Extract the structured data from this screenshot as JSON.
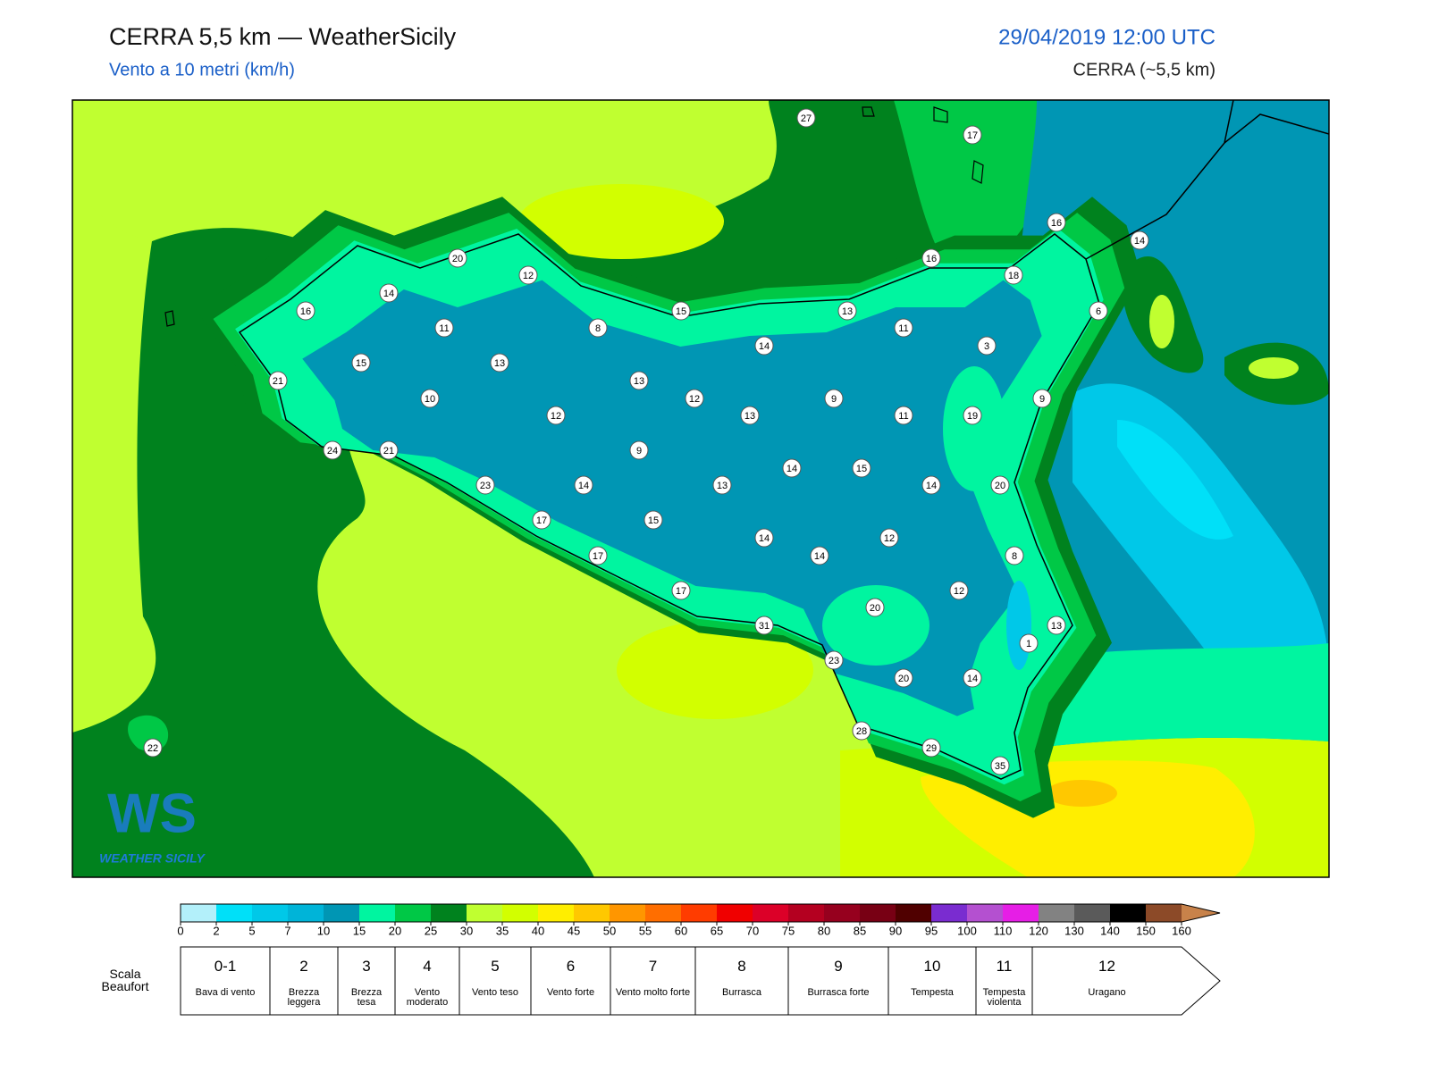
{
  "header": {
    "title": "CERRA 5,5 km — WeatherSicily",
    "subtitle": "Vento a 10 metri (km/h)",
    "datetime": "29/04/2019 12:00 UTC",
    "model": "CERRA (~5,5 km)"
  },
  "map": {
    "station_values": [
      27,
      17,
      16,
      14,
      20,
      12,
      16,
      18,
      14,
      16,
      15,
      13,
      6,
      11,
      8,
      11,
      3,
      14,
      15,
      13,
      21,
      13,
      10,
      12,
      9,
      9,
      12,
      13,
      11,
      19,
      24,
      21,
      9,
      14,
      15,
      23,
      14,
      13,
      14,
      20,
      17,
      15,
      14,
      12,
      14,
      17,
      8,
      17,
      12,
      20,
      31,
      13,
      1,
      23,
      20,
      14,
      28,
      29,
      35,
      22
    ],
    "logo": {
      "initials": "WS",
      "name": "WEATHER SICILY"
    }
  },
  "colorbar": {
    "ticks": [
      0,
      2,
      5,
      7,
      10,
      15,
      20,
      25,
      30,
      35,
      40,
      45,
      50,
      55,
      60,
      65,
      70,
      75,
      80,
      85,
      90,
      95,
      100,
      110,
      120,
      130,
      140,
      150,
      160
    ],
    "colors": [
      "#b3f0fa",
      "#00e0f8",
      "#00c8e8",
      "#00b4d8",
      "#0096b4",
      "#00f5a0",
      "#00c846",
      "#00821e",
      "#c0ff30",
      "#d2ff00",
      "#ffee00",
      "#ffc800",
      "#ff9600",
      "#ff6e00",
      "#ff3c00",
      "#f00000",
      "#dc0028",
      "#b40020",
      "#96001e",
      "#780014",
      "#500000",
      "#7a2cd0",
      "#b450d0",
      "#e61ee6",
      "#828282",
      "#5a5a5a",
      "#000000",
      "#8c4a28",
      "#c8824a"
    ]
  },
  "beaufort": {
    "label": "Scala Beaufort",
    "levels": [
      {
        "number": "0-1",
        "description": "Bava di vento"
      },
      {
        "number": "2",
        "description": "Brezza leggera"
      },
      {
        "number": "3",
        "description": "Brezza tesa"
      },
      {
        "number": "4",
        "description": "Vento moderato"
      },
      {
        "number": "5",
        "description": "Vento teso"
      },
      {
        "number": "6",
        "description": "Vento forte"
      },
      {
        "number": "7",
        "description": "Vento molto forte"
      },
      {
        "number": "8",
        "description": "Burrasca"
      },
      {
        "number": "9",
        "description": "Burrasca forte"
      },
      {
        "number": "10",
        "description": "Tempesta"
      },
      {
        "number": "11",
        "description": "Tempesta violenta"
      },
      {
        "number": "12",
        "description": "Uragano"
      }
    ]
  }
}
